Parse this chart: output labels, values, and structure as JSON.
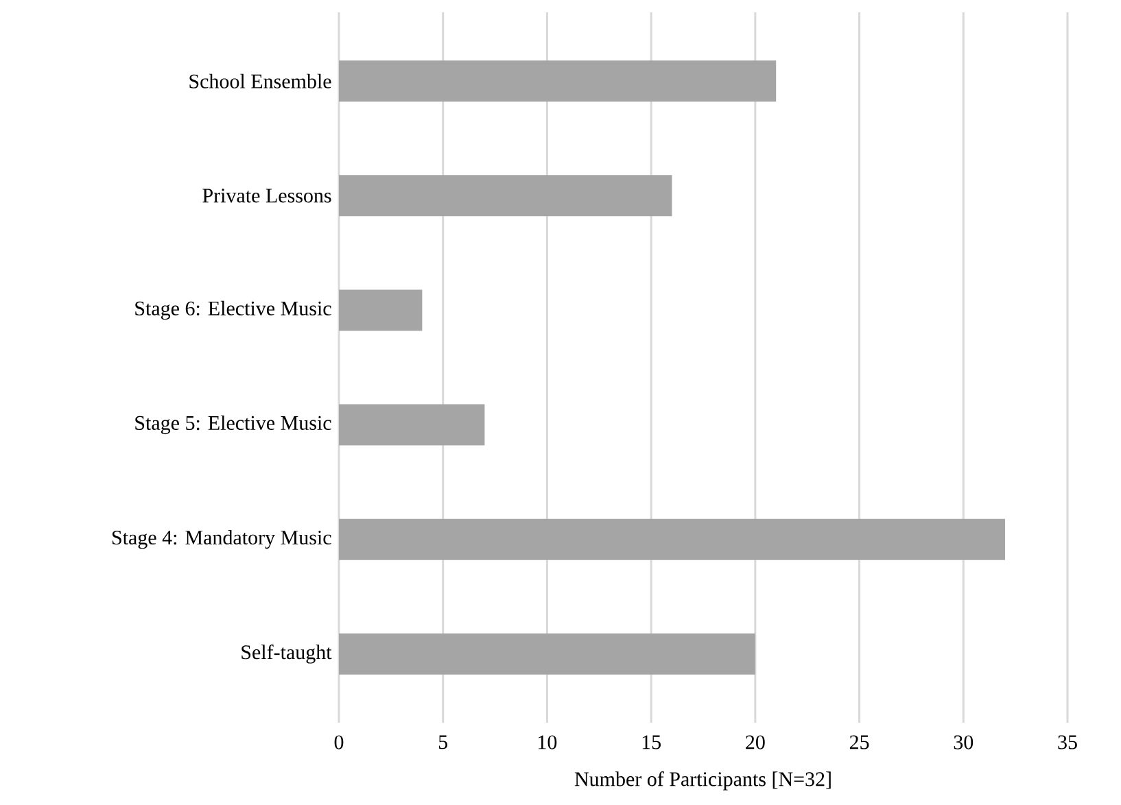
{
  "chart_data": {
    "type": "bar",
    "orientation": "horizontal",
    "categories": [
      "School Ensemble",
      "Private Lessons",
      "Stage 6: Elective Music",
      "Stage 5: Elective Music",
      "Stage 4: Mandatory Music",
      "Self-taught"
    ],
    "values": [
      21,
      16,
      4,
      7,
      32,
      20
    ],
    "color": "#a5a5a5",
    "xlabel": "Number of Participants [N=32]",
    "xlim": [
      0,
      35
    ],
    "xticks": [
      0,
      5,
      10,
      15,
      20,
      25,
      30,
      35
    ],
    "grid": "x"
  }
}
